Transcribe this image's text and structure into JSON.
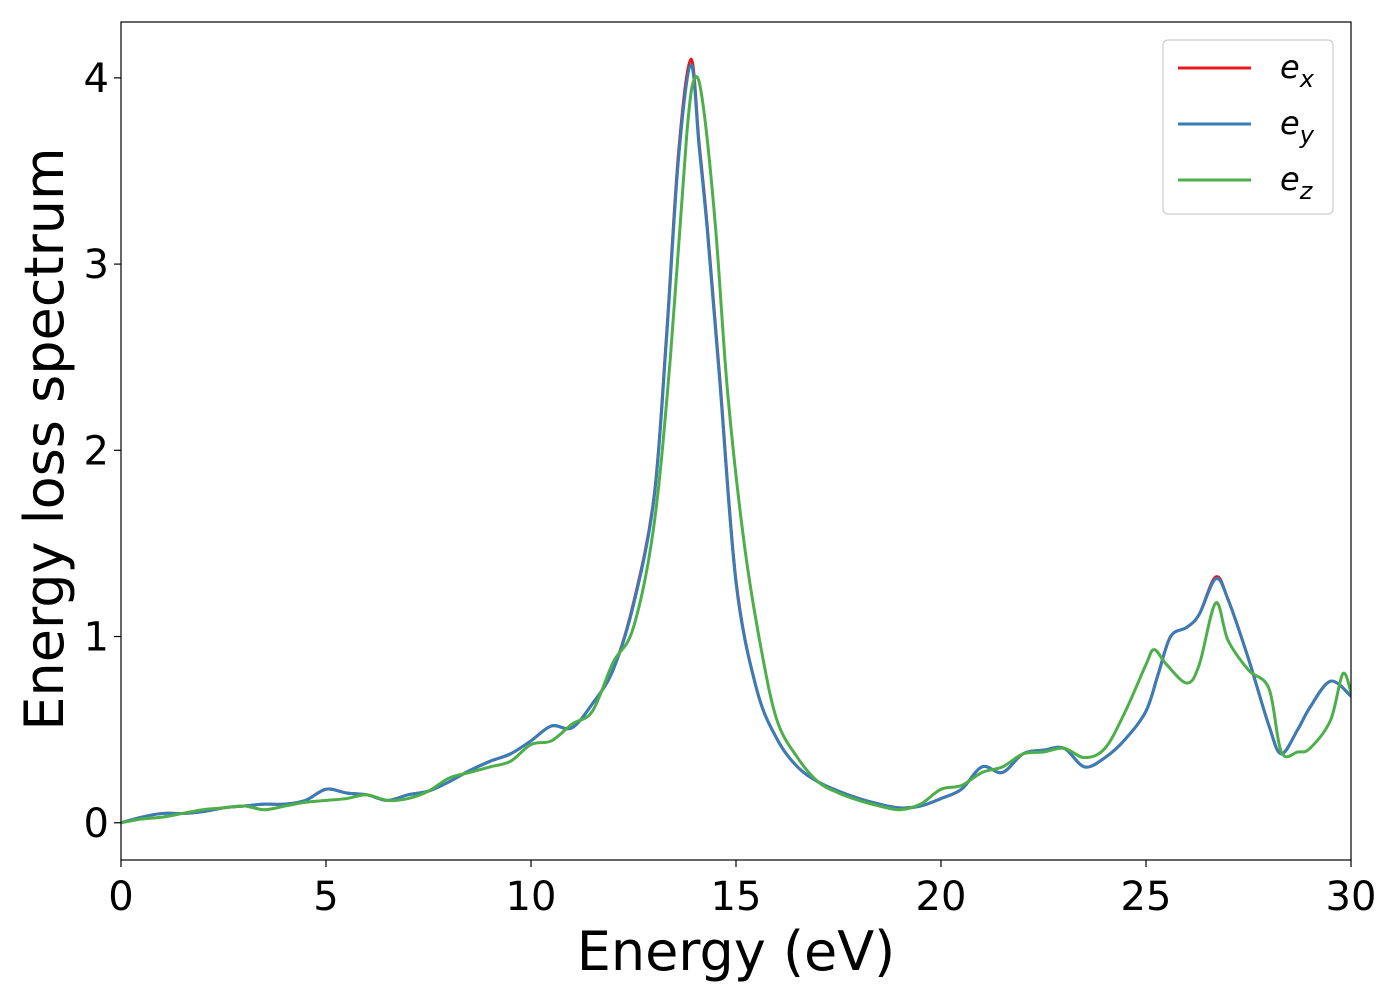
{
  "chart_data": {
    "type": "line",
    "title": "",
    "xlabel": "Energy (eV)",
    "ylabel": "Energy loss spectrum",
    "xlim": [
      0,
      30
    ],
    "ylim": [
      -0.2,
      4.3
    ],
    "xticks": [
      0,
      5,
      10,
      15,
      20,
      25,
      30
    ],
    "yticks": [
      0,
      1,
      2,
      3,
      4
    ],
    "grid": false,
    "legend_position": "top-right",
    "series": [
      {
        "name": "e_x",
        "label_base": "e",
        "label_sub": "x",
        "color": "#e41a1c",
        "x": [
          0,
          0.5,
          1,
          1.5,
          2,
          2.5,
          3,
          3.5,
          4,
          4.5,
          5,
          5.5,
          6,
          6.5,
          7,
          7.5,
          8,
          8.5,
          9,
          9.5,
          10,
          10.5,
          11,
          11.5,
          12,
          12.5,
          13,
          13.3,
          13.6,
          13.9,
          14.1,
          14.3,
          14.6,
          15,
          15.5,
          16,
          16.5,
          17,
          17.5,
          18,
          18.5,
          19,
          19.5,
          20,
          20.5,
          21,
          21.5,
          22,
          22.5,
          23,
          23.5,
          24,
          24.5,
          25,
          25.3,
          25.6,
          26,
          26.3,
          26.7,
          27,
          27.5,
          28,
          28.3,
          28.7,
          29,
          29.5,
          30
        ],
        "values": [
          0.0,
          0.03,
          0.05,
          0.05,
          0.06,
          0.08,
          0.09,
          0.1,
          0.1,
          0.12,
          0.18,
          0.16,
          0.15,
          0.12,
          0.15,
          0.17,
          0.22,
          0.28,
          0.33,
          0.37,
          0.44,
          0.52,
          0.51,
          0.64,
          0.82,
          1.18,
          1.75,
          2.6,
          3.6,
          4.1,
          3.65,
          3.2,
          2.4,
          1.3,
          0.72,
          0.45,
          0.3,
          0.22,
          0.17,
          0.13,
          0.1,
          0.08,
          0.09,
          0.13,
          0.18,
          0.3,
          0.27,
          0.37,
          0.39,
          0.4,
          0.3,
          0.35,
          0.45,
          0.6,
          0.8,
          1.0,
          1.05,
          1.12,
          1.32,
          1.2,
          0.88,
          0.52,
          0.37,
          0.5,
          0.62,
          0.76,
          0.68
        ]
      },
      {
        "name": "e_y",
        "label_base": "e",
        "label_sub": "y",
        "color": "#377eb8",
        "x": [
          0,
          0.5,
          1,
          1.5,
          2,
          2.5,
          3,
          3.5,
          4,
          4.5,
          5,
          5.5,
          6,
          6.5,
          7,
          7.5,
          8,
          8.5,
          9,
          9.5,
          10,
          10.5,
          11,
          11.5,
          12,
          12.5,
          13,
          13.3,
          13.6,
          13.9,
          14.1,
          14.3,
          14.6,
          15,
          15.5,
          16,
          16.5,
          17,
          17.5,
          18,
          18.5,
          19,
          19.5,
          20,
          20.5,
          21,
          21.5,
          22,
          22.5,
          23,
          23.5,
          24,
          24.5,
          25,
          25.3,
          25.6,
          26,
          26.3,
          26.7,
          27,
          27.5,
          28,
          28.3,
          28.7,
          29,
          29.5,
          30
        ],
        "values": [
          0.0,
          0.03,
          0.05,
          0.05,
          0.06,
          0.08,
          0.09,
          0.1,
          0.1,
          0.12,
          0.18,
          0.16,
          0.15,
          0.12,
          0.15,
          0.17,
          0.22,
          0.28,
          0.33,
          0.37,
          0.44,
          0.52,
          0.51,
          0.64,
          0.82,
          1.17,
          1.74,
          2.58,
          3.57,
          4.07,
          3.63,
          3.18,
          2.38,
          1.29,
          0.72,
          0.45,
          0.3,
          0.22,
          0.17,
          0.13,
          0.1,
          0.08,
          0.09,
          0.13,
          0.18,
          0.3,
          0.27,
          0.37,
          0.39,
          0.4,
          0.3,
          0.35,
          0.45,
          0.6,
          0.8,
          1.0,
          1.05,
          1.12,
          1.31,
          1.2,
          0.88,
          0.52,
          0.37,
          0.5,
          0.62,
          0.76,
          0.68
        ]
      },
      {
        "name": "e_z",
        "label_base": "e",
        "label_sub": "z",
        "color": "#4daf4a",
        "x": [
          0,
          0.5,
          1,
          1.5,
          2,
          2.5,
          3,
          3.5,
          4,
          4.5,
          5,
          5.5,
          6,
          6.5,
          7,
          7.5,
          8,
          8.5,
          9,
          9.5,
          10,
          10.5,
          11,
          11.5,
          12,
          12.5,
          13,
          13.4,
          13.8,
          14.0,
          14.2,
          14.5,
          14.8,
          15.2,
          15.6,
          16,
          16.5,
          17,
          17.5,
          18,
          18.5,
          19,
          19.5,
          20,
          20.5,
          21,
          21.5,
          22,
          22.5,
          23,
          23.5,
          24,
          24.5,
          25,
          25.2,
          25.5,
          26,
          26.3,
          26.7,
          27,
          27.5,
          28,
          28.3,
          28.7,
          29,
          29.5,
          29.8,
          30
        ],
        "values": [
          0.0,
          0.02,
          0.03,
          0.05,
          0.07,
          0.08,
          0.09,
          0.07,
          0.09,
          0.11,
          0.12,
          0.13,
          0.15,
          0.12,
          0.13,
          0.17,
          0.24,
          0.27,
          0.3,
          0.33,
          0.42,
          0.44,
          0.53,
          0.6,
          0.86,
          1.05,
          1.6,
          2.5,
          3.7,
          4.0,
          3.85,
          3.2,
          2.3,
          1.5,
          0.95,
          0.55,
          0.35,
          0.22,
          0.16,
          0.12,
          0.09,
          0.07,
          0.1,
          0.18,
          0.2,
          0.27,
          0.3,
          0.37,
          0.38,
          0.4,
          0.35,
          0.4,
          0.6,
          0.85,
          0.93,
          0.85,
          0.75,
          0.85,
          1.18,
          0.98,
          0.82,
          0.72,
          0.38,
          0.38,
          0.4,
          0.55,
          0.8,
          0.7
        ]
      }
    ]
  }
}
